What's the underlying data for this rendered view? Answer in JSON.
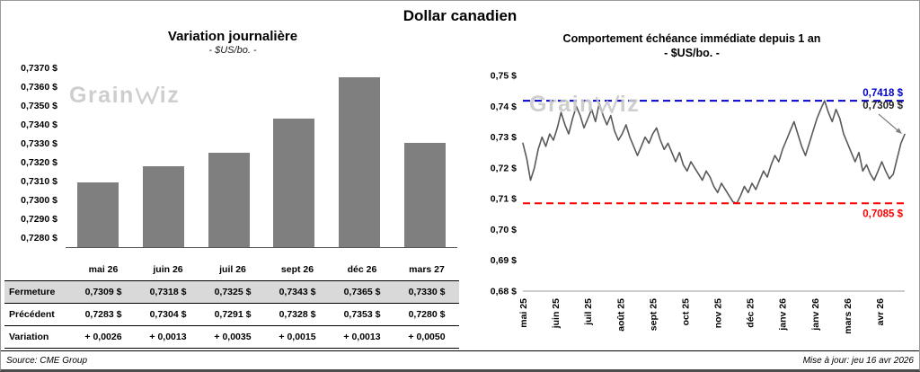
{
  "page_title": "Dollar canadien",
  "watermark": {
    "prefix": "Grain",
    "suffix": "iz"
  },
  "footer": {
    "source": "Source: CME Group",
    "updated": "Mise à jour: jeu 16 avr 2026"
  },
  "chart_data": [
    {
      "type": "bar",
      "title": "Variation journalière",
      "subtitle": "- $US/bo. -",
      "categories": [
        "mai 26",
        "juin 26",
        "juil 26",
        "sept 26",
        "déc 26",
        "mars 27"
      ],
      "values": [
        0.7309,
        0.7318,
        0.7325,
        0.7343,
        0.7365,
        0.733
      ],
      "ylim": [
        0.7275,
        0.737
      ],
      "bar_color": "#7f7f7f",
      "yticks": [
        {
          "value": 0.737,
          "label": "0,7370 $"
        },
        {
          "value": 0.736,
          "label": "0,7360 $"
        },
        {
          "value": 0.735,
          "label": "0,7350 $"
        },
        {
          "value": 0.734,
          "label": "0,7340 $"
        },
        {
          "value": 0.733,
          "label": "0,7330 $"
        },
        {
          "value": 0.732,
          "label": "0,7320 $"
        },
        {
          "value": 0.731,
          "label": "0,7310 $"
        },
        {
          "value": 0.73,
          "label": "0,7300 $"
        },
        {
          "value": 0.729,
          "label": "0,7290 $"
        },
        {
          "value": 0.728,
          "label": "0,7280 $"
        }
      ],
      "table": {
        "rows": [
          {
            "key": "fermeture",
            "label": "Fermeture",
            "shaded": true,
            "green": false,
            "values": [
              "0,7309 $",
              "0,7318 $",
              "0,7325 $",
              "0,7343 $",
              "0,7365 $",
              "0,7330 $"
            ]
          },
          {
            "key": "precedent",
            "label": "Précédent",
            "shaded": false,
            "green": false,
            "values": [
              "0,7283 $",
              "0,7304 $",
              "0,7291 $",
              "0,7328 $",
              "0,7353 $",
              "0,7280 $"
            ]
          },
          {
            "key": "variation",
            "label": "Variation",
            "shaded": false,
            "green": true,
            "values": [
              "+ 0,0026",
              "+ 0,0013",
              "+ 0,0035",
              "+ 0,0015",
              "+ 0,0013",
              "+ 0,0050"
            ]
          }
        ]
      }
    },
    {
      "type": "line",
      "title": "Comportement échéance immédiate depuis 1 an",
      "subtitle": "- $US/bo. -",
      "line_color": "#595959",
      "ylim": [
        0.68,
        0.75
      ],
      "yticks": [
        {
          "value": 0.75,
          "label": "0,75 $"
        },
        {
          "value": 0.74,
          "label": "0,74 $"
        },
        {
          "value": 0.73,
          "label": "0,73 $"
        },
        {
          "value": 0.72,
          "label": "0,72 $"
        },
        {
          "value": 0.71,
          "label": "0,71 $"
        },
        {
          "value": 0.7,
          "label": "0,70 $"
        },
        {
          "value": 0.69,
          "label": "0,69 $"
        },
        {
          "value": 0.68,
          "label": "0,68 $"
        }
      ],
      "x_labels": [
        "mai 25",
        "juin 25",
        "juil 25",
        "août 25",
        "sept 25",
        "oct 25",
        "nov 25",
        "déc 25",
        "janv 26",
        "janv 26",
        "mars 26",
        "avr 26"
      ],
      "max_line": {
        "value": 0.7418,
        "label": "0,7418 $",
        "color": "#0000cc"
      },
      "min_line": {
        "value": 0.7085,
        "label": "0,7085 $",
        "color": "#ff0000"
      },
      "last_point": {
        "value": 0.7309,
        "label": "0,7309 $",
        "color": "#262626"
      },
      "values": [
        0.728,
        0.723,
        0.716,
        0.72,
        0.726,
        0.73,
        0.727,
        0.731,
        0.729,
        0.733,
        0.738,
        0.734,
        0.731,
        0.736,
        0.74,
        0.737,
        0.733,
        0.736,
        0.739,
        0.735,
        0.741,
        0.737,
        0.734,
        0.737,
        0.732,
        0.729,
        0.731,
        0.734,
        0.73,
        0.727,
        0.724,
        0.727,
        0.73,
        0.728,
        0.731,
        0.733,
        0.729,
        0.726,
        0.728,
        0.725,
        0.722,
        0.725,
        0.721,
        0.719,
        0.722,
        0.72,
        0.718,
        0.716,
        0.719,
        0.717,
        0.714,
        0.712,
        0.715,
        0.713,
        0.711,
        0.709,
        0.7085,
        0.711,
        0.714,
        0.712,
        0.715,
        0.713,
        0.716,
        0.719,
        0.717,
        0.721,
        0.724,
        0.722,
        0.726,
        0.729,
        0.732,
        0.735,
        0.731,
        0.727,
        0.724,
        0.728,
        0.732,
        0.736,
        0.739,
        0.7418,
        0.738,
        0.735,
        0.739,
        0.736,
        0.731,
        0.728,
        0.725,
        0.722,
        0.725,
        0.719,
        0.721,
        0.718,
        0.716,
        0.719,
        0.722,
        0.719,
        0.7165,
        0.718,
        0.723,
        0.728,
        0.7309
      ]
    }
  ]
}
